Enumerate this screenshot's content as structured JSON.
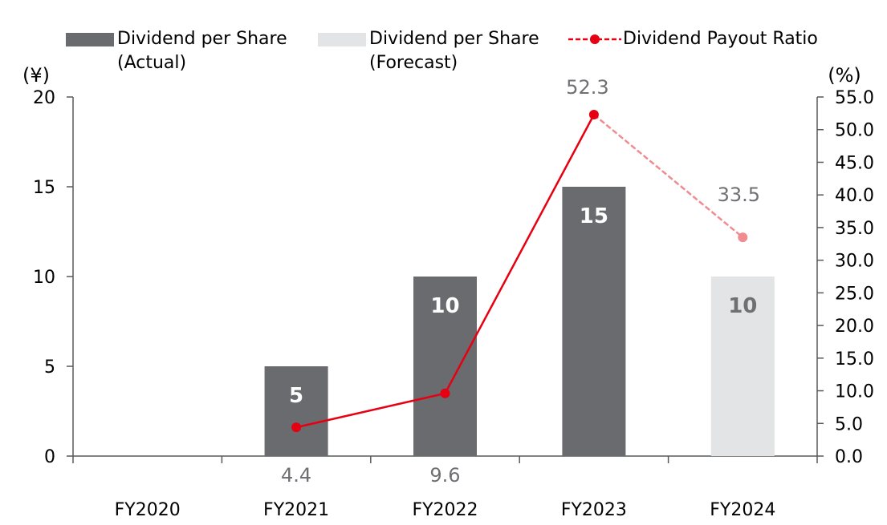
{
  "chart_data": {
    "type": "bar",
    "categories": [
      "FY2020",
      "FY2021",
      "FY2022",
      "FY2023",
      "FY2024"
    ],
    "series": [
      {
        "name": "Dividend per Share (Actual)",
        "name_lines": [
          "Dividend per Share",
          "(Actual)"
        ],
        "kind": "bar",
        "axis": "left",
        "color": "#696b6e",
        "label_color": "#ffffff",
        "values": [
          null,
          5,
          10,
          15,
          null
        ]
      },
      {
        "name": "Dividend per Share (Forecast)",
        "name_lines": [
          "Dividend per Share",
          "(Forecast)"
        ],
        "kind": "bar",
        "axis": "left",
        "color": "#e3e4e5",
        "label_color": "#6e7073",
        "values": [
          null,
          null,
          null,
          null,
          10
        ]
      },
      {
        "name": "Dividend Payout Ratio",
        "name_lines": [
          "Dividend Payout Ratio"
        ],
        "kind": "line",
        "axis": "right",
        "color": "#e60012",
        "forecast_color": "#f08c90",
        "label_color": "#6e7073",
        "values": [
          null,
          4.4,
          9.6,
          52.3,
          33.5
        ],
        "labels": [
          "",
          "4.4",
          "9.6",
          "52.3",
          "33.5"
        ],
        "forecast_from_index": 3
      }
    ],
    "y_left": {
      "label": "(¥)",
      "ylim": [
        0,
        20
      ],
      "ticks": [
        "0",
        "5",
        "10",
        "15",
        "20"
      ]
    },
    "y_right": {
      "label": "(%)",
      "ylim": [
        0,
        55
      ],
      "ticks": [
        "0.0",
        "5.0",
        "10.0",
        "15.0",
        "20.0",
        "25.0",
        "30.0",
        "35.0",
        "40.0",
        "45.0",
        "50.0",
        "55.0"
      ]
    },
    "grid": false,
    "legend_position": "top"
  }
}
